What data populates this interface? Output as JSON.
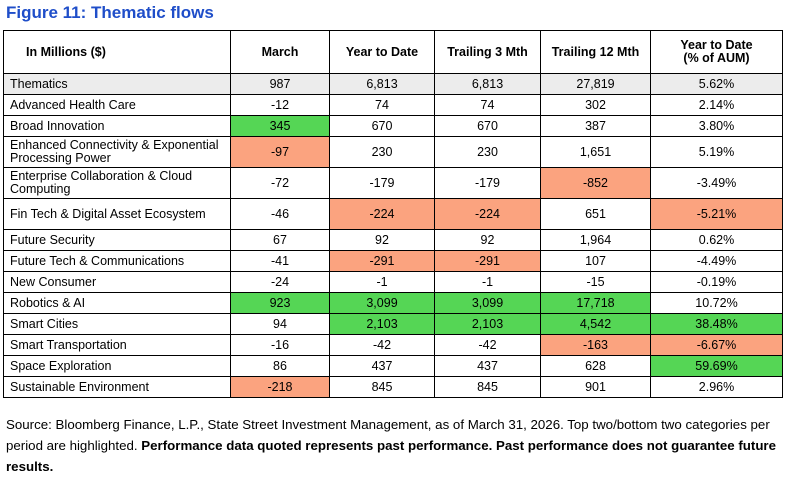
{
  "title": "Figure 11: Thematic flows",
  "chart_data": {
    "type": "table",
    "title": "Figure 11: Thematic flows",
    "header_label": "In Millions ($)",
    "columns": [
      "March",
      "Year to Date",
      "Trailing 3 Mth",
      "Trailing 12 Mth",
      "Year to Date (% of AUM)"
    ],
    "rows": [
      {
        "label": "Thematics",
        "values": [
          "987",
          "6,813",
          "6,813",
          "27,819",
          "5.62%"
        ],
        "highlights": [
          "",
          "",
          "",
          "",
          ""
        ]
      },
      {
        "label": "Advanced Health Care",
        "values": [
          "-12",
          "74",
          "74",
          "302",
          "2.14%"
        ],
        "highlights": [
          "",
          "",
          "",
          "",
          ""
        ]
      },
      {
        "label": "Broad Innovation",
        "values": [
          "345",
          "670",
          "670",
          "387",
          "3.80%"
        ],
        "highlights": [
          "top",
          "",
          "",
          "",
          ""
        ]
      },
      {
        "label": "Enhanced Connectivity & Exponential Processing Power",
        "values": [
          "-97",
          "230",
          "230",
          "1,651",
          "5.19%"
        ],
        "highlights": [
          "bottom",
          "",
          "",
          "",
          ""
        ]
      },
      {
        "label": "Enterprise Collaboration & Cloud Computing",
        "values": [
          "-72",
          "-179",
          "-179",
          "-852",
          "-3.49%"
        ],
        "highlights": [
          "",
          "",
          "",
          "bottom",
          ""
        ]
      },
      {
        "label": "Fin Tech & Digital Asset Ecosystem",
        "values": [
          "-46",
          "-224",
          "-224",
          "651",
          "-5.21%"
        ],
        "highlights": [
          "",
          "bottom",
          "bottom",
          "",
          "bottom"
        ]
      },
      {
        "label": "Future Security",
        "values": [
          "67",
          "92",
          "92",
          "1,964",
          "0.62%"
        ],
        "highlights": [
          "",
          "",
          "",
          "",
          ""
        ]
      },
      {
        "label": "Future Tech & Communications",
        "values": [
          "-41",
          "-291",
          "-291",
          "107",
          "-4.49%"
        ],
        "highlights": [
          "",
          "bottom",
          "bottom",
          "",
          ""
        ]
      },
      {
        "label": "New Consumer",
        "values": [
          "-24",
          "-1",
          "-1",
          "-15",
          "-0.19%"
        ],
        "highlights": [
          "",
          "",
          "",
          "",
          ""
        ]
      },
      {
        "label": "Robotics & AI",
        "values": [
          "923",
          "3,099",
          "3,099",
          "17,718",
          "10.72%"
        ],
        "highlights": [
          "top",
          "top",
          "top",
          "top",
          ""
        ]
      },
      {
        "label": "Smart Cities",
        "values": [
          "94",
          "2,103",
          "2,103",
          "4,542",
          "38.48%"
        ],
        "highlights": [
          "",
          "top",
          "top",
          "top",
          "top"
        ]
      },
      {
        "label": "Smart Transportation",
        "values": [
          "-16",
          "-42",
          "-42",
          "-163",
          "-6.67%"
        ],
        "highlights": [
          "",
          "",
          "",
          "bottom",
          "bottom"
        ]
      },
      {
        "label": "Space Exploration",
        "values": [
          "86",
          "437",
          "437",
          "628",
          "59.69%"
        ],
        "highlights": [
          "",
          "",
          "",
          "",
          "top"
        ]
      },
      {
        "label": "Sustainable Environment",
        "values": [
          "-218",
          "845",
          "845",
          "901",
          "2.96%"
        ],
        "highlights": [
          "bottom",
          "",
          "",
          "",
          ""
        ]
      }
    ]
  },
  "colors": {
    "top": "#55d655",
    "bottom": "#fba37f",
    "title": "#1f4ec9",
    "total_row": "#ececec"
  },
  "footnote": {
    "normal": "Source: Bloomberg Finance, L.P., State Street Investment Management, as of March 31, 2026. Top two/bottom two categories per period are highlighted. ",
    "bold": "Performance data quoted represents past performance. Past performance does not guarantee future results."
  }
}
